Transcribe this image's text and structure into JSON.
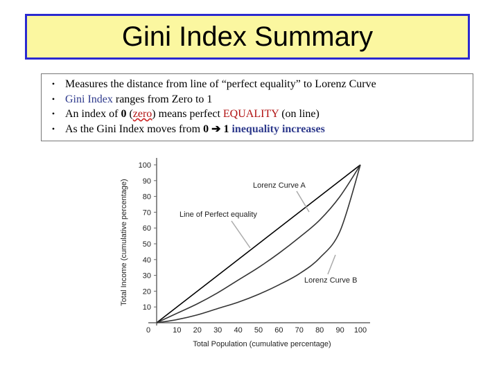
{
  "title": "Gini Index Summary",
  "bullets": [
    {
      "parts": [
        {
          "text": "Measures the distance from line of “perfect equality” to Lorenz Curve",
          "cls": ""
        }
      ]
    },
    {
      "parts": [
        {
          "text": "Gini Index",
          "cls": "blue"
        },
        {
          "text": " ranges from Zero to 1",
          "cls": ""
        }
      ]
    },
    {
      "parts": [
        {
          "text": "An index of ",
          "cls": ""
        },
        {
          "text": "0",
          "cls": "b"
        },
        {
          "text": " (",
          "cls": ""
        },
        {
          "text": "zero",
          "cls": "red ul"
        },
        {
          "text": ") means perfect ",
          "cls": ""
        },
        {
          "text": "EQUALITY",
          "cls": "red"
        },
        {
          "text": "  (on line)",
          "cls": ""
        }
      ]
    },
    {
      "parts": [
        {
          "text": "As the Gini Index moves from ",
          "cls": ""
        },
        {
          "text": "0",
          "cls": "b"
        },
        {
          "text": " ➔ ",
          "cls": "b"
        },
        {
          "text": "1",
          "cls": "b"
        },
        {
          "text": " inequality increases",
          "cls": "blue b"
        }
      ]
    }
  ],
  "chart_data": {
    "type": "line",
    "xlabel": "Total Population (cumulative percentage)",
    "ylabel": "Total Income (cumulative percentage)",
    "xlim": [
      0,
      100
    ],
    "ylim": [
      0,
      100
    ],
    "x_ticks": [
      0,
      10,
      20,
      30,
      40,
      50,
      60,
      70,
      80,
      90,
      100
    ],
    "y_ticks": [
      10,
      20,
      30,
      40,
      50,
      60,
      70,
      80,
      90,
      100
    ],
    "series": [
      {
        "name": "Line of Perfect equality",
        "x": [
          0,
          100
        ],
        "y": [
          0,
          100
        ],
        "color": "#000000"
      },
      {
        "name": "Lorenz Curve A",
        "x": [
          0,
          10,
          20,
          30,
          40,
          50,
          60,
          70,
          80,
          90,
          100
        ],
        "y": [
          0,
          6,
          12,
          19,
          27,
          35,
          44,
          54,
          65,
          80,
          100
        ],
        "color": "#333333"
      },
      {
        "name": "Lorenz Curve B",
        "x": [
          0,
          10,
          20,
          30,
          40,
          50,
          60,
          70,
          80,
          90,
          100
        ],
        "y": [
          0,
          2,
          5,
          9,
          13,
          18,
          24,
          31,
          41,
          58,
          100
        ],
        "color": "#333333"
      }
    ]
  }
}
